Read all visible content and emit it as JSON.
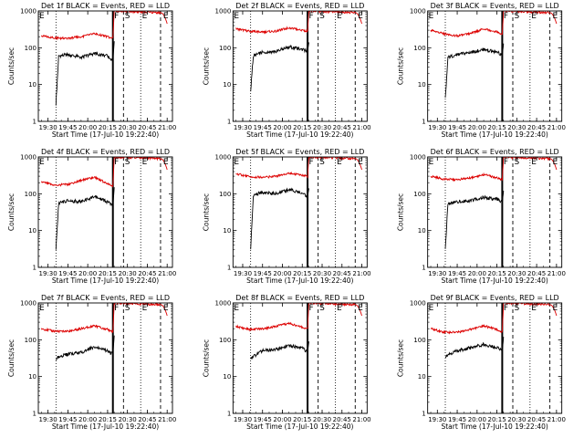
{
  "colors": {
    "events": "#000000",
    "lld": "#dd0000",
    "background": "#ffffff"
  },
  "chart_data": [
    {
      "type": "line",
      "title": "Det 1f BLACK = Events, RED = LLD",
      "xlabel": "Start Time (17-Jul-10 19:22:40)",
      "ylabel": "Counts/sec",
      "x_ticks": [
        "19:30",
        "19:45",
        "20:00",
        "20:15",
        "20:30",
        "20:45",
        "21:00"
      ],
      "y_ticks": [
        "1",
        "10",
        "100",
        "1000"
      ],
      "ylim": [
        1,
        1000
      ],
      "yscale": "log",
      "markers": [
        "F",
        "S",
        "E",
        "E"
      ],
      "series": [
        {
          "name": "BLACK = Events",
          "color": "#000000",
          "x": [
            "19:36",
            "19:38",
            "19:45",
            "19:55",
            "20:05",
            "20:15",
            "20:19",
            "20:20"
          ],
          "values": [
            3,
            60,
            65,
            55,
            70,
            60,
            45,
            150
          ]
        },
        {
          "name": "RED = LLD",
          "color": "#dd0000",
          "x": [
            "19:25",
            "19:35",
            "19:45",
            "19:55",
            "20:05",
            "20:15",
            "20:19",
            "20:20",
            "20:55",
            "21:00"
          ],
          "values": [
            210,
            185,
            180,
            200,
            240,
            200,
            180,
            1000,
            900,
            450
          ]
        }
      ]
    },
    {
      "type": "line",
      "title": "Det 2f BLACK = Events, RED = LLD",
      "xlabel": "Start Time (17-Jul-10 19:22:40)",
      "ylabel": "Counts/sec",
      "x_ticks": [
        "19:30",
        "19:45",
        "20:00",
        "20:15",
        "20:30",
        "20:45",
        "21:00"
      ],
      "y_ticks": [
        "1",
        "10",
        "100",
        "1000"
      ],
      "ylim": [
        1,
        1000
      ],
      "yscale": "log",
      "markers": [
        "F",
        "S",
        "E",
        "E"
      ],
      "series": [
        {
          "name": "BLACK = Events",
          "color": "#000000",
          "x": [
            "19:36",
            "19:38",
            "19:45",
            "19:55",
            "20:05",
            "20:15",
            "20:19",
            "20:20"
          ],
          "values": [
            7,
            60,
            75,
            80,
            105,
            90,
            80,
            140
          ]
        },
        {
          "name": "RED = LLD",
          "color": "#dd0000",
          "x": [
            "19:25",
            "19:35",
            "19:45",
            "19:55",
            "20:05",
            "20:15",
            "20:19",
            "20:20",
            "20:55",
            "21:00"
          ],
          "values": [
            330,
            280,
            270,
            280,
            350,
            300,
            280,
            1000,
            900,
            450
          ]
        }
      ]
    },
    {
      "type": "line",
      "title": "Det 3f BLACK = Events, RED = LLD",
      "xlabel": "Start Time (17-Jul-10 19:22:40)",
      "ylabel": "Counts/sec",
      "x_ticks": [
        "19:30",
        "19:45",
        "20:00",
        "20:15",
        "20:30",
        "20:45",
        "21:00"
      ],
      "y_ticks": [
        "1",
        "10",
        "100",
        "1000"
      ],
      "ylim": [
        1,
        1000
      ],
      "yscale": "log",
      "markers": [
        "F",
        "S",
        "E",
        "E"
      ],
      "series": [
        {
          "name": "BLACK = Events",
          "color": "#000000",
          "x": [
            "19:36",
            "19:38",
            "19:45",
            "19:55",
            "20:05",
            "20:15",
            "20:19",
            "20:20"
          ],
          "values": [
            4,
            55,
            65,
            75,
            90,
            75,
            65,
            130
          ]
        },
        {
          "name": "RED = LLD",
          "color": "#dd0000",
          "x": [
            "19:25",
            "19:35",
            "19:45",
            "19:55",
            "20:05",
            "20:15",
            "20:19",
            "20:20",
            "20:55",
            "21:00"
          ],
          "values": [
            300,
            240,
            210,
            240,
            330,
            270,
            230,
            1000,
            900,
            450
          ]
        }
      ]
    },
    {
      "type": "line",
      "title": "Det 4f BLACK = Events, RED = LLD",
      "xlabel": "Start Time (17-Jul-10 19:22:40)",
      "ylabel": "Counts/sec",
      "x_ticks": [
        "19:30",
        "19:45",
        "20:00",
        "20:15",
        "20:30",
        "20:45",
        "21:00"
      ],
      "y_ticks": [
        "1",
        "10",
        "100",
        "1000"
      ],
      "ylim": [
        1,
        1000
      ],
      "yscale": "log",
      "markers": [
        "F",
        "S",
        "E",
        "E"
      ],
      "series": [
        {
          "name": "BLACK = Events",
          "color": "#000000",
          "x": [
            "19:36",
            "19:38",
            "19:45",
            "19:55",
            "20:05",
            "20:15",
            "20:19",
            "20:20"
          ],
          "values": [
            3,
            55,
            65,
            60,
            85,
            60,
            45,
            150
          ]
        },
        {
          "name": "RED = LLD",
          "color": "#dd0000",
          "x": [
            "19:25",
            "19:35",
            "19:45",
            "19:55",
            "20:05",
            "20:15",
            "20:19",
            "20:20",
            "20:55",
            "21:00"
          ],
          "values": [
            210,
            170,
            180,
            230,
            280,
            190,
            160,
            1000,
            900,
            450
          ]
        }
      ]
    },
    {
      "type": "line",
      "title": "Det 5f BLACK = Events, RED = LLD",
      "xlabel": "Start Time (17-Jul-10 19:22:40)",
      "ylabel": "Counts/sec",
      "x_ticks": [
        "19:30",
        "19:45",
        "20:00",
        "20:15",
        "20:30",
        "20:45",
        "21:00"
      ],
      "y_ticks": [
        "1",
        "10",
        "100",
        "1000"
      ],
      "ylim": [
        1,
        1000
      ],
      "yscale": "log",
      "markers": [
        "F",
        "S",
        "E",
        "E"
      ],
      "series": [
        {
          "name": "BLACK = Events",
          "color": "#000000",
          "x": [
            "19:36",
            "19:38",
            "19:45",
            "19:55",
            "20:05",
            "20:15",
            "20:19",
            "20:20"
          ],
          "values": [
            3,
            90,
            110,
            100,
            130,
            105,
            85,
            140
          ]
        },
        {
          "name": "RED = LLD",
          "color": "#dd0000",
          "x": [
            "19:25",
            "19:35",
            "19:45",
            "19:55",
            "20:05",
            "20:15",
            "20:19",
            "20:20",
            "20:55",
            "21:00"
          ],
          "values": [
            350,
            290,
            280,
            300,
            360,
            320,
            290,
            1000,
            900,
            450
          ]
        }
      ]
    },
    {
      "type": "line",
      "title": "Det 6f BLACK = Events, RED = LLD",
      "xlabel": "Start Time (17-Jul-10 19:22:40)",
      "ylabel": "Counts/sec",
      "x_ticks": [
        "19:30",
        "19:45",
        "20:00",
        "20:15",
        "20:30",
        "20:45",
        "21:00"
      ],
      "y_ticks": [
        "1",
        "10",
        "100",
        "1000"
      ],
      "ylim": [
        1,
        1000
      ],
      "yscale": "log",
      "markers": [
        "F",
        "S",
        "E",
        "E"
      ],
      "series": [
        {
          "name": "BLACK = Events",
          "color": "#000000",
          "x": [
            "19:36",
            "19:38",
            "19:45",
            "19:55",
            "20:05",
            "20:15",
            "20:19",
            "20:20"
          ],
          "values": [
            3,
            55,
            60,
            65,
            80,
            70,
            60,
            120
          ]
        },
        {
          "name": "RED = LLD",
          "color": "#dd0000",
          "x": [
            "19:25",
            "19:35",
            "19:45",
            "19:55",
            "20:05",
            "20:15",
            "20:19",
            "20:20",
            "20:55",
            "21:00"
          ],
          "values": [
            300,
            250,
            240,
            270,
            330,
            270,
            240,
            1000,
            900,
            450
          ]
        }
      ]
    },
    {
      "type": "line",
      "title": "Det 7f BLACK = Events, RED = LLD",
      "xlabel": "Start Time (17-Jul-10 19:22:40)",
      "ylabel": "Counts/sec",
      "x_ticks": [
        "19:30",
        "19:45",
        "20:00",
        "20:15",
        "20:30",
        "20:45",
        "21:00"
      ],
      "y_ticks": [
        "1",
        "10",
        "100",
        "1000"
      ],
      "ylim": [
        1,
        1000
      ],
      "yscale": "log",
      "markers": [
        "F",
        "S",
        "E",
        "E"
      ],
      "series": [
        {
          "name": "BLACK = Events",
          "color": "#000000",
          "x": [
            "19:36",
            "19:38",
            "19:45",
            "19:55",
            "20:05",
            "20:15",
            "20:19",
            "20:20"
          ],
          "values": [
            30,
            35,
            40,
            45,
            65,
            50,
            40,
            130
          ]
        },
        {
          "name": "RED = LLD",
          "color": "#dd0000",
          "x": [
            "19:25",
            "19:35",
            "19:45",
            "19:55",
            "20:05",
            "20:15",
            "20:19",
            "20:20",
            "20:55",
            "21:00"
          ],
          "values": [
            200,
            170,
            170,
            200,
            240,
            190,
            160,
            1000,
            900,
            450
          ]
        }
      ]
    },
    {
      "type": "line",
      "title": "Det 8f BLACK = Events, RED = LLD",
      "xlabel": "Start Time (17-Jul-10 19:22:40)",
      "ylabel": "Counts/sec",
      "x_ticks": [
        "19:30",
        "19:45",
        "20:00",
        "20:15",
        "20:30",
        "20:45",
        "21:00"
      ],
      "y_ticks": [
        "1",
        "10",
        "100",
        "1000"
      ],
      "ylim": [
        1,
        1000
      ],
      "yscale": "log",
      "markers": [
        "F",
        "S",
        "E",
        "E"
      ],
      "series": [
        {
          "name": "BLACK = Events",
          "color": "#000000",
          "x": [
            "19:36",
            "19:38",
            "19:45",
            "19:55",
            "20:05",
            "20:15",
            "20:19",
            "20:20"
          ],
          "values": [
            30,
            35,
            50,
            55,
            70,
            60,
            45,
            90
          ]
        },
        {
          "name": "RED = LLD",
          "color": "#dd0000",
          "x": [
            "19:25",
            "19:35",
            "19:45",
            "19:55",
            "20:05",
            "20:15",
            "20:19",
            "20:20",
            "20:55",
            "21:00"
          ],
          "values": [
            230,
            190,
            200,
            230,
            280,
            220,
            200,
            1000,
            900,
            450
          ]
        }
      ]
    },
    {
      "type": "line",
      "title": "Det 9f BLACK = Events, RED = LLD",
      "xlabel": "Start Time (17-Jul-10 19:22:40)",
      "ylabel": "Counts/sec",
      "x_ticks": [
        "19:30",
        "19:45",
        "20:00",
        "20:15",
        "20:30",
        "20:45",
        "21:00"
      ],
      "y_ticks": [
        "1",
        "10",
        "100",
        "1000"
      ],
      "ylim": [
        1,
        1000
      ],
      "yscale": "log",
      "markers": [
        "F",
        "S",
        "E",
        "E"
      ],
      "series": [
        {
          "name": "BLACK = Events",
          "color": "#000000",
          "x": [
            "19:36",
            "19:38",
            "19:45",
            "19:55",
            "20:05",
            "20:15",
            "20:19",
            "20:20"
          ],
          "values": [
            35,
            40,
            50,
            60,
            75,
            60,
            50,
            120
          ]
        },
        {
          "name": "RED = LLD",
          "color": "#dd0000",
          "x": [
            "19:25",
            "19:35",
            "19:45",
            "19:55",
            "20:05",
            "20:15",
            "20:19",
            "20:20",
            "20:55",
            "21:00"
          ],
          "values": [
            200,
            160,
            160,
            190,
            240,
            190,
            160,
            1000,
            900,
            450
          ]
        }
      ]
    }
  ]
}
